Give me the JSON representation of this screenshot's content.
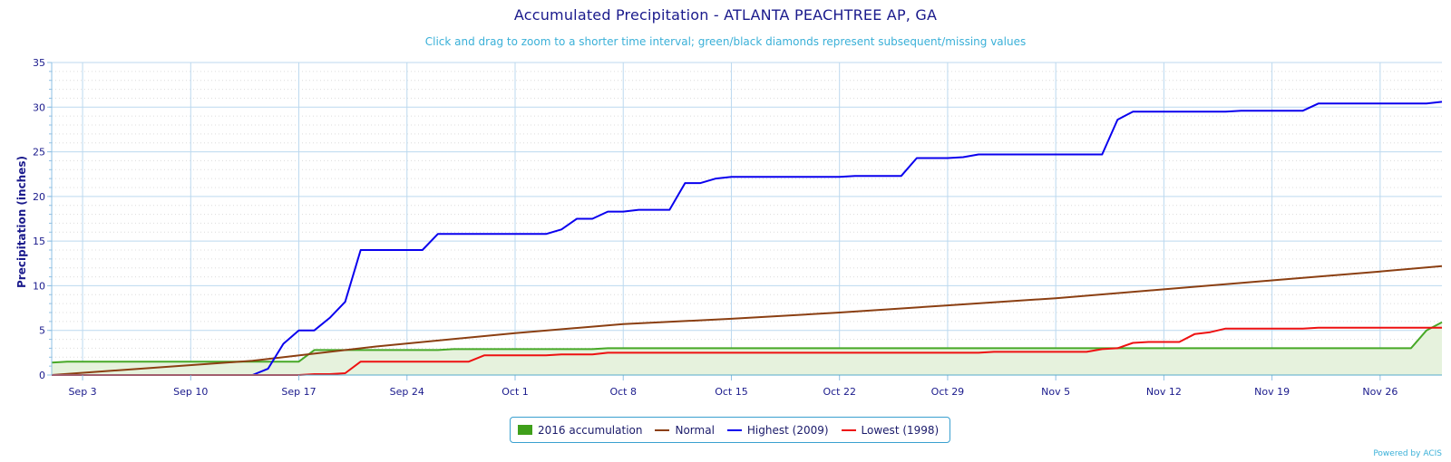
{
  "page": {
    "title": "Accumulated Precipitation - ATLANTA PEACHTREE AP, GA",
    "subtitle": "Click and drag to zoom to a shorter time interval; green/black diamonds represent subsequent/missing values",
    "ylabel": "Precipitation (inches)",
    "credit": "Powered by ACIS"
  },
  "colors": {
    "accum_fill": "#e6f2dd",
    "accum_line": "#46a826",
    "accum_swatch": "#3f9f1a",
    "normal": "#8b3f12",
    "highest": "#0a00ee",
    "lowest": "#ee1111",
    "grid": "#bcd9ef",
    "axis": "#8fc0e4",
    "text": "#1a1a8c"
  },
  "chart_data": {
    "type": "line",
    "title": "Accumulated Precipitation - ATLANTA PEACHTREE AP, GA",
    "ylabel": "Precipitation (inches)",
    "xlabel": "",
    "ylim": [
      0,
      35
    ],
    "yticks": [
      "0",
      "5",
      "10",
      "15",
      "20",
      "25",
      "30",
      "35"
    ],
    "xrange": [
      "Sep 1",
      "Nov 30"
    ],
    "xticks": [
      "Sep 3",
      "Sep 10",
      "Sep 17",
      "Sep 24",
      "Oct 1",
      "Oct 8",
      "Oct 15",
      "Oct 22",
      "Oct 29",
      "Nov 5",
      "Nov 12",
      "Nov 19",
      "Nov 26"
    ],
    "grid": true,
    "legend_position": "bottom-center",
    "series": [
      {
        "name": "2016 accumulation",
        "kind": "area",
        "points": [
          [
            "Sep 1",
            1.4
          ],
          [
            "Sep 2",
            1.5
          ],
          [
            "Sep 15",
            1.5
          ],
          [
            "Sep 16",
            1.5
          ],
          [
            "Sep 17",
            1.5
          ],
          [
            "Sep 18",
            2.8
          ],
          [
            "Sep 19",
            2.8
          ],
          [
            "Sep 26",
            2.8
          ],
          [
            "Sep 27",
            2.9
          ],
          [
            "Oct 6",
            2.9
          ],
          [
            "Oct 7",
            3.0
          ],
          [
            "Nov 27",
            3.0
          ],
          [
            "Nov 28",
            3.0
          ],
          [
            "Nov 29",
            5.0
          ],
          [
            "Nov 30",
            5.9
          ]
        ]
      },
      {
        "name": "Normal",
        "kind": "line",
        "points": [
          [
            "Sep 1",
            0.0
          ],
          [
            "Sep 14",
            1.6
          ],
          [
            "Sep 22",
            3.2
          ],
          [
            "Oct 1",
            4.7
          ],
          [
            "Oct 8",
            5.7
          ],
          [
            "Oct 15",
            6.3
          ],
          [
            "Oct 22",
            7.0
          ],
          [
            "Oct 29",
            7.8
          ],
          [
            "Nov 5",
            8.6
          ],
          [
            "Nov 12",
            9.6
          ],
          [
            "Nov 19",
            10.6
          ],
          [
            "Nov 26",
            11.6
          ],
          [
            "Nov 30",
            12.2
          ]
        ]
      },
      {
        "name": "Highest (2009)",
        "kind": "line",
        "points": [
          [
            "Sep 1",
            0.0
          ],
          [
            "Sep 14",
            0.0
          ],
          [
            "Sep 15",
            0.7
          ],
          [
            "Sep 16",
            3.5
          ],
          [
            "Sep 17",
            5.0
          ],
          [
            "Sep 18",
            5.0
          ],
          [
            "Sep 19",
            6.4
          ],
          [
            "Sep 20",
            8.2
          ],
          [
            "Sep 21",
            14.0
          ],
          [
            "Sep 25",
            14.0
          ],
          [
            "Sep 26",
            15.8
          ],
          [
            "Oct 3",
            15.8
          ],
          [
            "Oct 4",
            16.3
          ],
          [
            "Oct 5",
            17.5
          ],
          [
            "Oct 6",
            17.5
          ],
          [
            "Oct 7",
            18.3
          ],
          [
            "Oct 8",
            18.3
          ],
          [
            "Oct 9",
            18.5
          ],
          [
            "Oct 11",
            18.5
          ],
          [
            "Oct 12",
            21.5
          ],
          [
            "Oct 13",
            21.5
          ],
          [
            "Oct 14",
            22.0
          ],
          [
            "Oct 15",
            22.2
          ],
          [
            "Oct 22",
            22.2
          ],
          [
            "Oct 23",
            22.3
          ],
          [
            "Oct 26",
            22.3
          ],
          [
            "Oct 27",
            24.3
          ],
          [
            "Oct 29",
            24.3
          ],
          [
            "Oct 30",
            24.4
          ],
          [
            "Oct 31",
            24.7
          ],
          [
            "Nov 8",
            24.7
          ],
          [
            "Nov 9",
            28.6
          ],
          [
            "Nov 10",
            29.5
          ],
          [
            "Nov 16",
            29.5
          ],
          [
            "Nov 17",
            29.6
          ],
          [
            "Nov 21",
            29.6
          ],
          [
            "Nov 22",
            30.4
          ],
          [
            "Nov 29",
            30.4
          ],
          [
            "Nov 30",
            30.6
          ]
        ]
      },
      {
        "name": "Lowest (1998)",
        "kind": "line",
        "points": [
          [
            "Sep 1",
            0.0
          ],
          [
            "Sep 17",
            0.0
          ],
          [
            "Sep 18",
            0.1
          ],
          [
            "Sep 19",
            0.1
          ],
          [
            "Sep 20",
            0.2
          ],
          [
            "Sep 21",
            1.5
          ],
          [
            "Sep 28",
            1.5
          ],
          [
            "Sep 29",
            2.2
          ],
          [
            "Oct 3",
            2.2
          ],
          [
            "Oct 4",
            2.3
          ],
          [
            "Oct 6",
            2.3
          ],
          [
            "Oct 7",
            2.5
          ],
          [
            "Oct 31",
            2.5
          ],
          [
            "Nov 1",
            2.6
          ],
          [
            "Nov 7",
            2.6
          ],
          [
            "Nov 8",
            2.9
          ],
          [
            "Nov 9",
            3.0
          ],
          [
            "Nov 10",
            3.6
          ],
          [
            "Nov 11",
            3.7
          ],
          [
            "Nov 13",
            3.7
          ],
          [
            "Nov 14",
            4.6
          ],
          [
            "Nov 15",
            4.8
          ],
          [
            "Nov 16",
            5.2
          ],
          [
            "Nov 21",
            5.2
          ],
          [
            "Nov 22",
            5.3
          ],
          [
            "Nov 30",
            5.3
          ]
        ]
      }
    ]
  }
}
